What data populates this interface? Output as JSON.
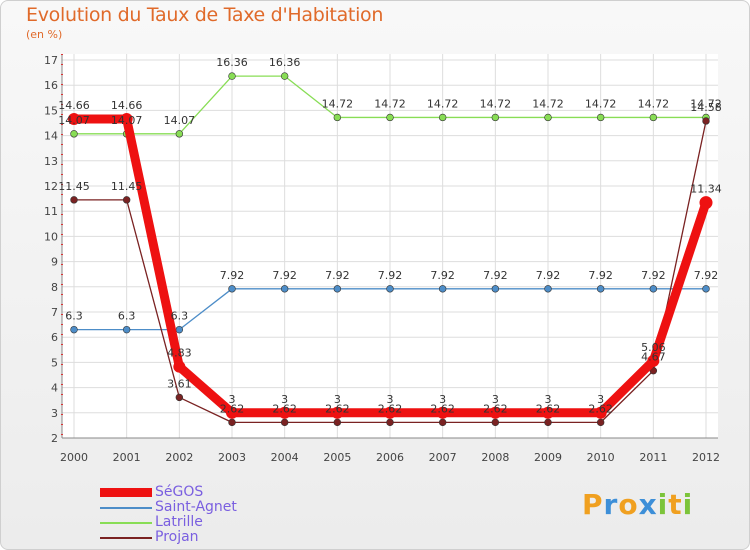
{
  "chart_data": {
    "type": "line",
    "title": "Evolution du Taux de Taxe d'Habitation",
    "subtitle": "(en %)",
    "categories": [
      "2000",
      "2001",
      "2002",
      "2003",
      "2004",
      "2005",
      "2006",
      "2007",
      "2008",
      "2009",
      "2010",
      "2011",
      "2012"
    ],
    "ylim": [
      2,
      17
    ],
    "yticks": [
      2,
      3,
      4,
      5,
      6,
      7,
      8,
      9,
      10,
      11,
      12,
      13,
      14,
      15,
      16,
      17
    ],
    "grid": true,
    "series": [
      {
        "name": "SéGOS",
        "color": "#ee1111",
        "values": [
          14.66,
          14.66,
          4.83,
          3,
          3,
          3,
          3,
          3,
          3,
          3,
          3,
          5.06,
          11.34
        ],
        "labels": [
          "14.66",
          "14.66",
          "4.83",
          "3",
          "3",
          "3",
          "3",
          "3",
          "3",
          "3",
          "3",
          "5.06",
          "11.34"
        ]
      },
      {
        "name": "Saint-Agnet",
        "color": "#4d8dc8",
        "values": [
          6.3,
          6.3,
          6.3,
          7.92,
          7.92,
          7.92,
          7.92,
          7.92,
          7.92,
          7.92,
          7.92,
          7.92,
          7.92
        ],
        "labels": [
          "6.3",
          "6.3",
          "6.3",
          "7.92",
          "7.92",
          "7.92",
          "7.92",
          "7.92",
          "7.92",
          "7.92",
          "7.92",
          "7.92",
          "7.92"
        ]
      },
      {
        "name": "Latrille",
        "color": "#88dd55",
        "values": [
          14.07,
          14.07,
          14.07,
          16.36,
          16.36,
          14.72,
          14.72,
          14.72,
          14.72,
          14.72,
          14.72,
          14.72,
          14.72
        ],
        "labels": [
          "14.07",
          "14.07",
          "14.07",
          "16.36",
          "16.36",
          "14.72",
          "14.72",
          "14.72",
          "14.72",
          "14.72",
          "14.72",
          "14.72",
          "14.72"
        ]
      },
      {
        "name": "Projan",
        "color": "#7a2222",
        "values": [
          11.45,
          11.45,
          3.61,
          2.62,
          2.62,
          2.62,
          2.62,
          2.62,
          2.62,
          2.62,
          2.62,
          4.67,
          14.58
        ],
        "labels": [
          "11.45",
          "11.45",
          "3.61",
          "2.62",
          "2.62",
          "2.62",
          "2.62",
          "2.62",
          "2.62",
          "2.62",
          "2.62",
          "4.67",
          "14.58"
        ]
      }
    ]
  },
  "brand": {
    "letters": [
      "P",
      "r",
      "o",
      "x",
      "i",
      "t",
      "i"
    ],
    "colors": [
      "#f0a020",
      "#3d8fd8",
      "#f0a020",
      "#3d8fd8",
      "#7cc43a",
      "#f0a020",
      "#7cc43a"
    ]
  }
}
